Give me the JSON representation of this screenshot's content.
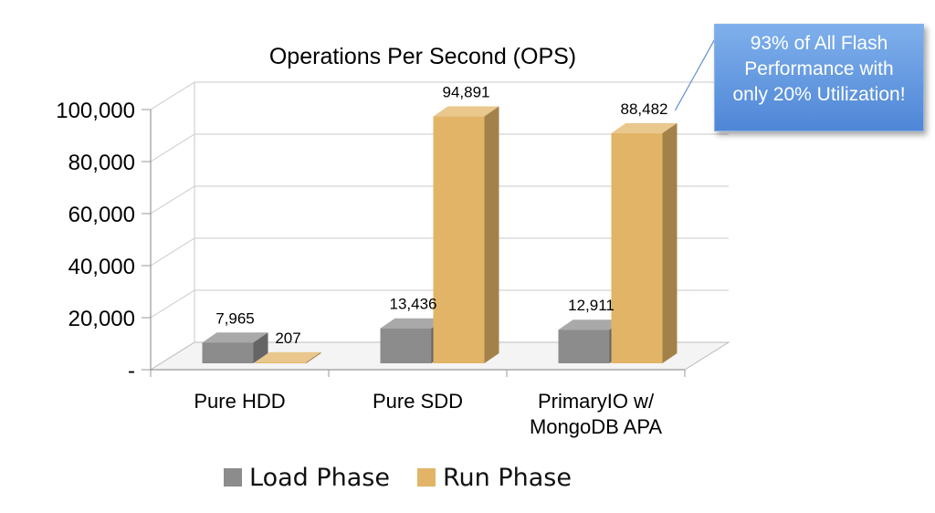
{
  "chart_data": {
    "type": "bar",
    "title": "Operations Per Second (OPS)",
    "categories": [
      "Pure HDD",
      "Pure SDD",
      "PrimaryIO w/ MongoDB APA"
    ],
    "category_lines": [
      [
        "Pure HDD"
      ],
      [
        "Pure SDD"
      ],
      [
        "PrimaryIO w/",
        "MongoDB APA"
      ]
    ],
    "series": [
      {
        "name": "Load Phase",
        "values": [
          7965,
          13436,
          12911
        ],
        "labels": [
          "7,965",
          "13,436",
          "12,911"
        ],
        "color": "#8c8c8c"
      },
      {
        "name": "Run Phase",
        "values": [
          207,
          94891,
          88482
        ],
        "labels": [
          "207",
          "94,891",
          "88,482"
        ],
        "color": "#e2b467"
      }
    ],
    "y_ticks": [
      "-",
      "20,000",
      "40,000",
      "60,000",
      "80,000",
      "100,000"
    ],
    "ylim": [
      0,
      100000
    ],
    "grid": true,
    "legend_position": "bottom",
    "annotation": {
      "lines": [
        "93% of All Flash",
        "Performance with",
        "only 20% Utilization!"
      ],
      "target_series": "Run Phase",
      "target_category": "PrimaryIO w/ MongoDB APA"
    }
  }
}
